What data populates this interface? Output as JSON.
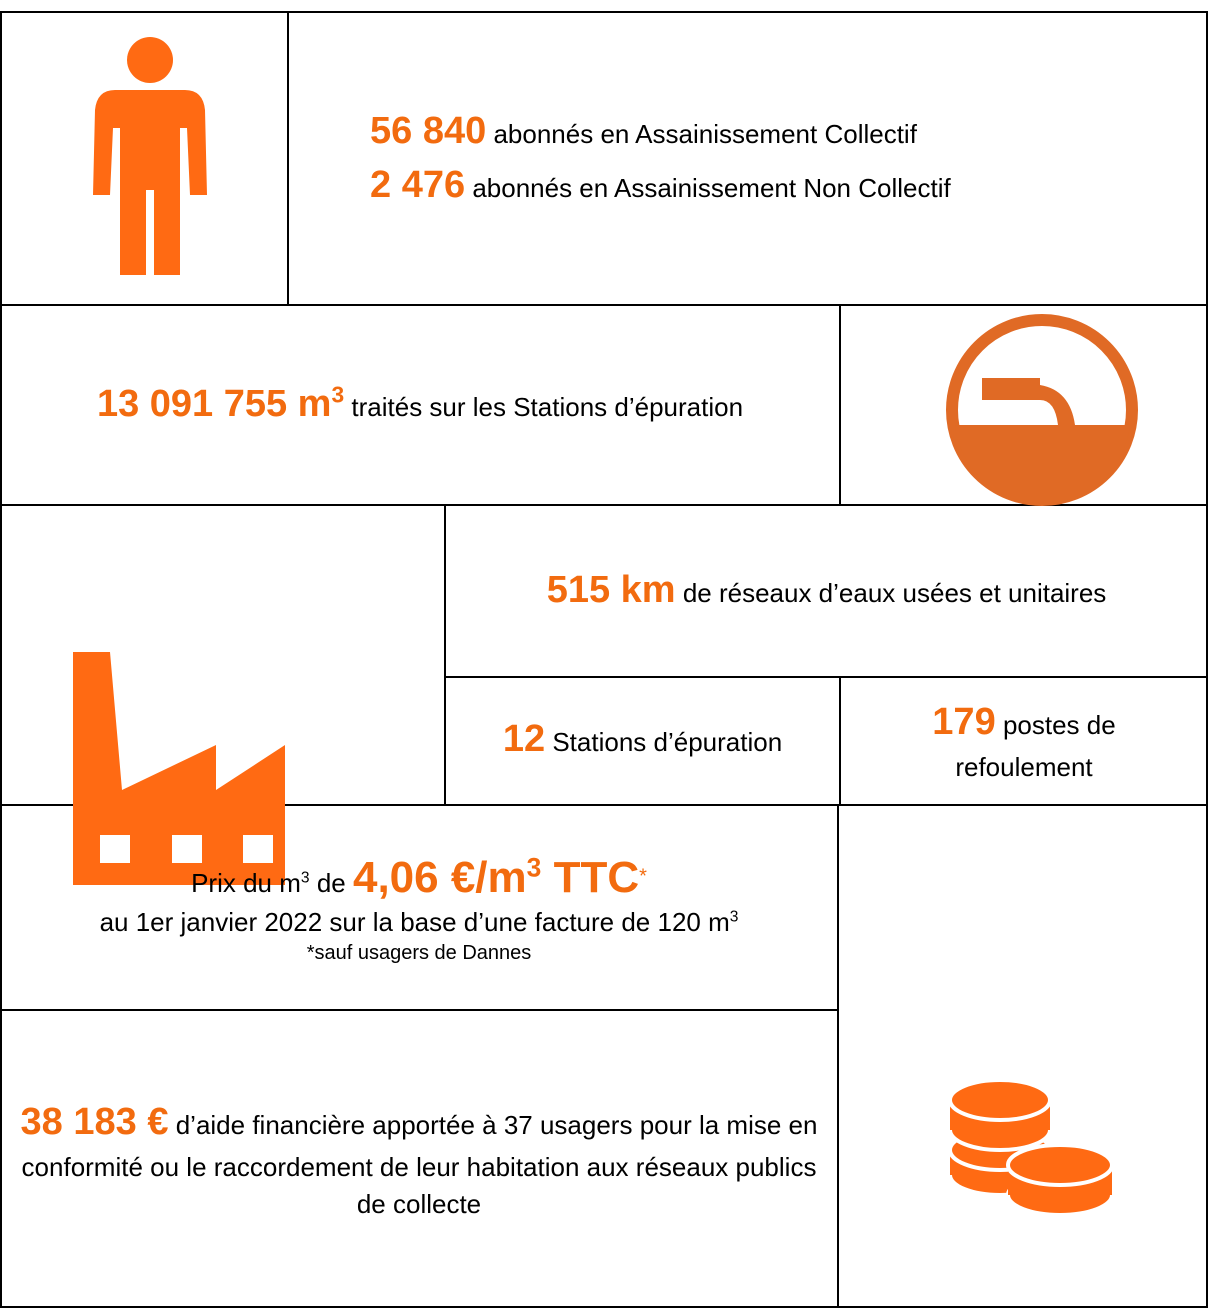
{
  "subscribers": [
    {
      "number": "56 840",
      "text": "abonnés en Assainissement Collectif"
    },
    {
      "number": "2 476",
      "text": "abonnés en Assainissement Non Collectif"
    }
  ],
  "treated": {
    "number": "13 091 755 m",
    "number_sup": "3",
    "text": "traités sur les Stations d’épuration"
  },
  "network": {
    "number": "515 km",
    "text": "de réseaux d’eaux usées et unitaires"
  },
  "stations": {
    "number": "12",
    "text": "Stations d’épuration"
  },
  "pumps": {
    "number": "179",
    "text": "postes de refoulement"
  },
  "price": {
    "prefix": "Prix du m",
    "prefix_sup": "3",
    "mid": "de",
    "number": "4,06 €/m",
    "number_sup": "3",
    "number_suffix": "TTC",
    "asterisk": "*",
    "line2": "au 1er janvier 2022 sur la base d’une facture de 120 m",
    "line2_sup": "3",
    "note": "*sauf usagers de Dannes"
  },
  "aid": {
    "number": "38 183 €",
    "text": "d’aide financière apportée à 37 usagers pour la mise en conformité ou le raccordement de leur habitation aux réseaux publics de collecte"
  }
}
